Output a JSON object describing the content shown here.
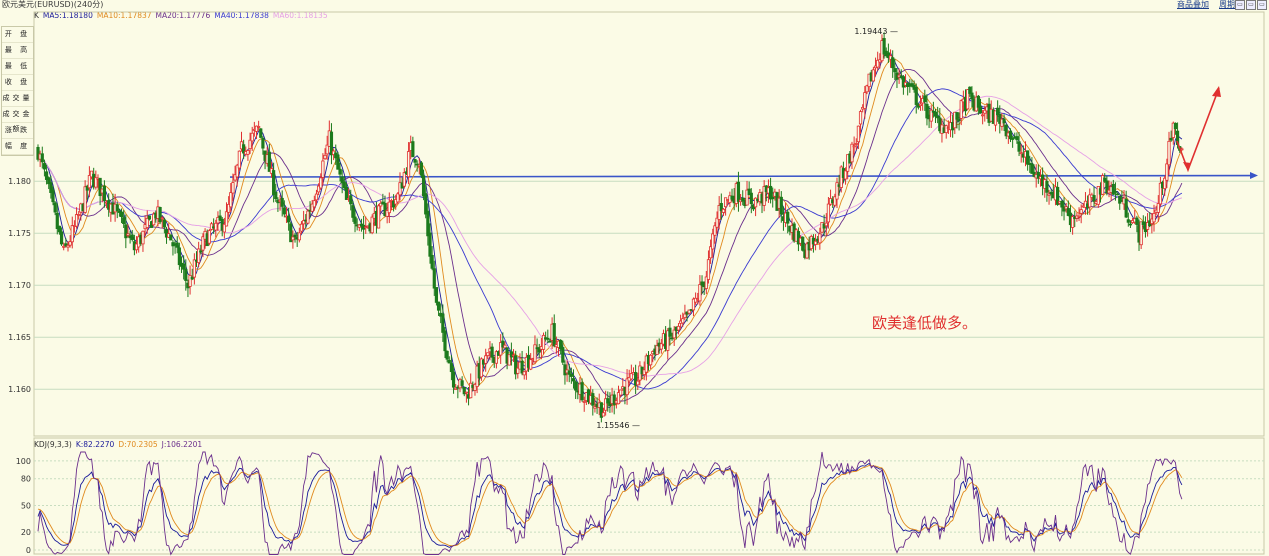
{
  "window": {
    "title": "欧元美元(EURUSD)(240分)",
    "links": [
      "商品叠加",
      "周期"
    ]
  },
  "main_legend": {
    "prefix": "K",
    "items": [
      {
        "label": "MA5:1.18180",
        "color": "#1a1a9a"
      },
      {
        "label": "MA10:1.17837",
        "color": "#e08a1e"
      },
      {
        "label": "MA20:1.17776",
        "color": "#6b2f8c"
      },
      {
        "label": "MA40:1.17838",
        "color": "#3a3ad0"
      },
      {
        "label": "MA60:1.18135",
        "color": "#e6a0e6"
      }
    ]
  },
  "kdj_legend": {
    "items": [
      {
        "label": "KDJ(9,3,3)",
        "color": "#333333"
      },
      {
        "label": "K:82.2270",
        "color": "#1a1a9a"
      },
      {
        "label": "D:70.2305",
        "color": "#e08a1e"
      },
      {
        "label": "J:106.2201",
        "color": "#6b2f8c"
      }
    ]
  },
  "info_panel": {
    "rows": [
      "开 盘",
      "最 高",
      "最 低",
      "收 盘",
      "成交量",
      "成交金额",
      "涨 跌",
      "幅 度"
    ]
  },
  "annotation": {
    "text": "欧美逢低做多。",
    "color": "#e03030"
  },
  "colors": {
    "background": "#fbfbe6",
    "up_candle": "#e03030",
    "down_candle": "#1d7a1d",
    "grid": "#c8ddc0",
    "horizontal_line": "#3a55c8",
    "arrow": "#e03030"
  },
  "chart_data": [
    {
      "type": "candlestick",
      "title": "欧元美元(EURUSD)(240分)",
      "ylim": [
        1.1555,
        1.1955
      ],
      "y_ticks": [
        "1.180",
        "1.175",
        "1.170",
        "1.165",
        "1.160"
      ],
      "high_label": "1.19443",
      "low_label": "1.15546",
      "horizontal_level": 1.1804,
      "waypoints": [
        [
          0,
          1.183
        ],
        [
          5,
          1.179
        ],
        [
          12,
          1.173
        ],
        [
          18,
          1.176
        ],
        [
          25,
          1.1805
        ],
        [
          35,
          1.1775
        ],
        [
          45,
          1.1735
        ],
        [
          55,
          1.177
        ],
        [
          62,
          1.1745
        ],
        [
          70,
          1.17
        ],
        [
          78,
          1.1745
        ],
        [
          88,
          1.1765
        ],
        [
          95,
          1.183
        ],
        [
          103,
          1.185
        ],
        [
          112,
          1.178
        ],
        [
          120,
          1.174
        ],
        [
          128,
          1.178
        ],
        [
          136,
          1.184
        ],
        [
          144,
          1.178
        ],
        [
          152,
          1.1755
        ],
        [
          160,
          1.177
        ],
        [
          168,
          1.1785
        ],
        [
          174,
          1.183
        ],
        [
          178,
          1.182
        ],
        [
          186,
          1.168
        ],
        [
          194,
          1.161
        ],
        [
          200,
          1.1595
        ],
        [
          208,
          1.1625
        ],
        [
          216,
          1.164
        ],
        [
          224,
          1.162
        ],
        [
          232,
          1.1635
        ],
        [
          240,
          1.1655
        ],
        [
          248,
          1.161
        ],
        [
          256,
          1.1595
        ],
        [
          264,
          1.158
        ],
        [
          272,
          1.16
        ],
        [
          280,
          1.161
        ],
        [
          288,
          1.164
        ],
        [
          296,
          1.165
        ],
        [
          304,
          1.167
        ],
        [
          312,
          1.171
        ],
        [
          318,
          1.1775
        ],
        [
          326,
          1.179
        ],
        [
          334,
          1.178
        ],
        [
          342,
          1.179
        ],
        [
          350,
          1.176
        ],
        [
          358,
          1.1735
        ],
        [
          366,
          1.1755
        ],
        [
          374,
          1.18
        ],
        [
          382,
          1.184
        ],
        [
          388,
          1.1895
        ],
        [
          394,
          1.193
        ],
        [
          402,
          1.19
        ],
        [
          410,
          1.188
        ],
        [
          418,
          1.186
        ],
        [
          426,
          1.185
        ],
        [
          434,
          1.188
        ],
        [
          442,
          1.1865
        ],
        [
          450,
          1.186
        ],
        [
          458,
          1.183
        ],
        [
          466,
          1.1805
        ],
        [
          474,
          1.179
        ],
        [
          482,
          1.1765
        ],
        [
          490,
          1.1775
        ],
        [
          498,
          1.18
        ],
        [
          506,
          1.178
        ],
        [
          514,
          1.175
        ],
        [
          522,
          1.177
        ],
        [
          530,
          1.185
        ],
        [
          534,
          1.183
        ]
      ]
    },
    {
      "type": "line",
      "title": "KDJ(9,3,3)",
      "ylim": [
        0,
        110
      ],
      "y_ticks": [
        100,
        80,
        50,
        20,
        0
      ],
      "series": [
        {
          "name": "K",
          "values": [
            82.227
          ]
        },
        {
          "name": "D",
          "values": [
            70.2305
          ]
        },
        {
          "name": "J",
          "values": [
            106.2201
          ]
        }
      ]
    }
  ]
}
